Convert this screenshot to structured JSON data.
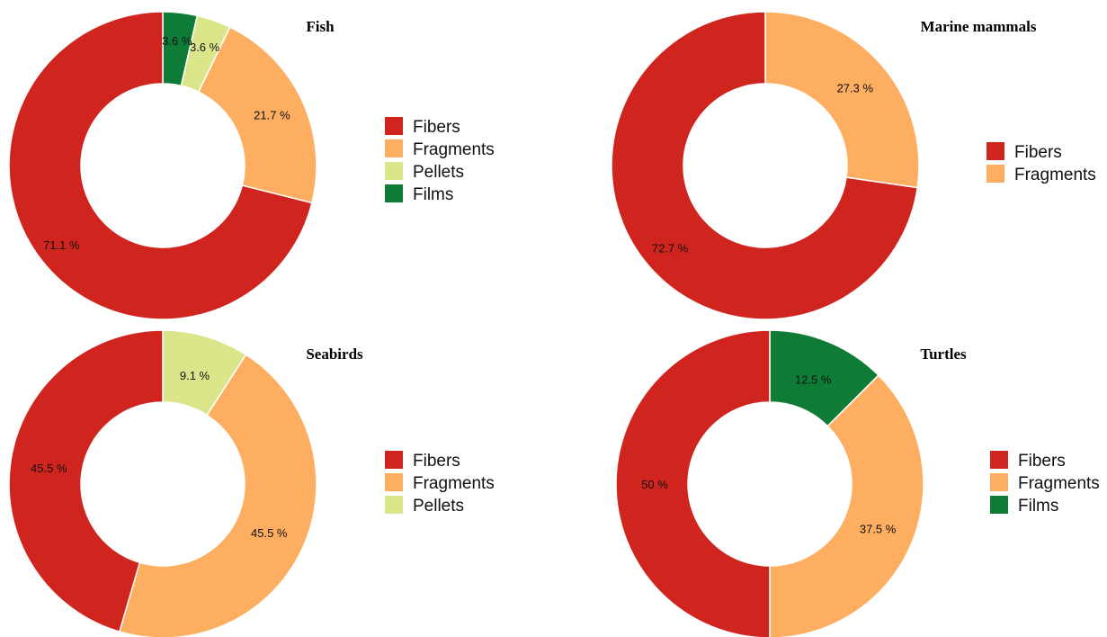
{
  "chart_data": [
    {
      "type": "pie",
      "title": "Fish",
      "slices": [
        {
          "label": "Films",
          "value": 3.6,
          "text": "3.6 %",
          "color": "#0e7c37"
        },
        {
          "label": "Pellets",
          "value": 3.6,
          "text": "3.6 %",
          "color": "#dbe68a"
        },
        {
          "label": "Fragments",
          "value": 21.7,
          "text": "21.7 %",
          "color": "#fdae61"
        },
        {
          "label": "Fibers",
          "value": 71.1,
          "text": "71.1 %",
          "color": "#d0251f"
        }
      ],
      "legend": [
        "Fibers",
        "Fragments",
        "Pellets",
        "Films"
      ]
    },
    {
      "type": "pie",
      "title": "Marine mammals",
      "slices": [
        {
          "label": "Fragments",
          "value": 27.3,
          "text": "27.3 %",
          "color": "#fdae61"
        },
        {
          "label": "Fibers",
          "value": 72.7,
          "text": "72.7 %",
          "color": "#d0251f"
        }
      ],
      "legend": [
        "Fibers",
        "Fragments"
      ]
    },
    {
      "type": "pie",
      "title": "Seabirds",
      "slices": [
        {
          "label": "Pellets",
          "value": 9.1,
          "text": "9.1 %",
          "color": "#dbe68a"
        },
        {
          "label": "Fragments",
          "value": 45.5,
          "text": "45.5 %",
          "color": "#fdae61"
        },
        {
          "label": "Fibers",
          "value": 45.5,
          "text": "45.5 %",
          "color": "#d0251f"
        }
      ],
      "legend": [
        "Fibers",
        "Fragments",
        "Pellets"
      ]
    },
    {
      "type": "pie",
      "title": "Turtles",
      "slices": [
        {
          "label": "Films",
          "value": 12.5,
          "text": "12.5 %",
          "color": "#0e7c37"
        },
        {
          "label": "Fragments",
          "value": 37.5,
          "text": "37.5 %",
          "color": "#fdae61"
        },
        {
          "label": "Fibers",
          "value": 50,
          "text": "50 %",
          "color": "#d0251f"
        }
      ],
      "legend": [
        "Fibers",
        "Fragments",
        "Films"
      ]
    }
  ],
  "legend_colors": {
    "Fibers": "#d0251f",
    "Fragments": "#fdae61",
    "Pellets": "#dbe68a",
    "Films": "#0e7c37"
  }
}
